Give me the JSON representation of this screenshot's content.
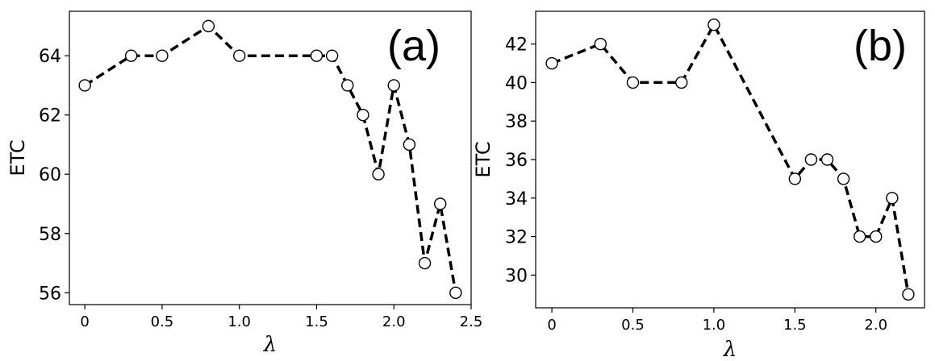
{
  "chart_data": [
    {
      "type": "line",
      "panel_label": "(a)",
      "xlabel": "λ",
      "ylabel": "ETC",
      "xlim": [
        -0.1,
        2.5
      ],
      "ylim": [
        55.6,
        65.5
      ],
      "xticks": [
        0,
        0.5,
        1.0,
        1.5,
        2.0,
        2.5
      ],
      "xtick_labels": [
        "0",
        "0.5",
        "1.0",
        "1.5",
        "2.0",
        "2.5"
      ],
      "yticks": [
        56,
        58,
        60,
        62,
        64
      ],
      "ytick_labels": [
        "56",
        "58",
        "60",
        "62",
        "64"
      ],
      "grid": false,
      "line_style": "dashed",
      "line_color": "#000000",
      "marker": "open-circle",
      "series": [
        {
          "x": [
            0,
            0.3,
            0.5,
            0.8,
            1.0,
            1.5,
            1.6,
            1.7,
            1.8,
            1.9,
            2.0,
            2.1,
            2.2,
            2.3,
            2.4
          ],
          "y": [
            63,
            64,
            64,
            65,
            64,
            64,
            64,
            63,
            62,
            60,
            63,
            61,
            57,
            59,
            56
          ]
        }
      ]
    },
    {
      "type": "line",
      "panel_label": "(b)",
      "xlabel": "λ",
      "ylabel": "ETC",
      "xlim": [
        -0.1,
        2.3
      ],
      "ylim": [
        28.3,
        43.7
      ],
      "xticks": [
        0,
        0.5,
        1.0,
        1.5,
        2.0
      ],
      "xtick_labels": [
        "0",
        "0.5",
        "1.0",
        "1.5",
        "2.0"
      ],
      "yticks": [
        30,
        32,
        34,
        36,
        38,
        40,
        42
      ],
      "ytick_labels": [
        "30",
        "32",
        "34",
        "36",
        "38",
        "40",
        "42"
      ],
      "grid": false,
      "line_style": "dashed",
      "line_color": "#000000",
      "marker": "open-circle",
      "series": [
        {
          "x": [
            0,
            0.3,
            0.5,
            0.8,
            1.0,
            1.5,
            1.6,
            1.7,
            1.8,
            1.9,
            2.0,
            2.1,
            2.2
          ],
          "y": [
            41,
            42,
            40,
            40,
            43,
            35,
            36,
            36,
            35,
            32,
            32,
            34,
            29
          ]
        }
      ]
    }
  ]
}
